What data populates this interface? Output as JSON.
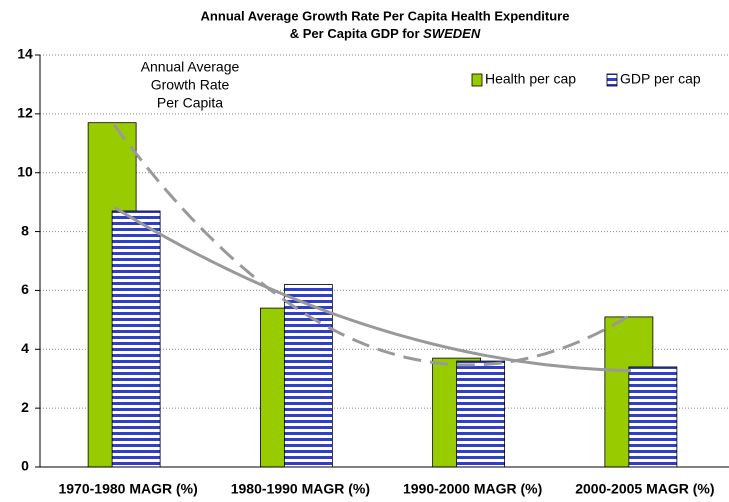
{
  "chart_data": {
    "type": "bar",
    "title": [
      "Annual Average Growth Rate Per Capita Health Expenditure",
      "& Per Capita GDP for ",
      "SWEDEN"
    ],
    "annotation": [
      "Annual Average",
      "Growth Rate",
      "Per Capita"
    ],
    "categories": [
      "1970-1980  MAGR (%)",
      "1980-1990  MAGR (%)",
      "1990-2000  MAGR (%)",
      "2000-2005  MAGR (%)"
    ],
    "series": [
      {
        "name": "Health per cap",
        "color": "#99cc00",
        "values": [
          11.7,
          5.4,
          3.7,
          5.1
        ],
        "trend": "dashed"
      },
      {
        "name": "GDP per cap",
        "color": "#2e3fc9",
        "values": [
          8.7,
          6.2,
          3.6,
          3.4
        ],
        "trend": "solid"
      }
    ],
    "ylim": [
      0,
      14
    ],
    "yticks": [
      0,
      2,
      4,
      6,
      8,
      10,
      12,
      14
    ],
    "grid": true,
    "legend": "top-right"
  }
}
